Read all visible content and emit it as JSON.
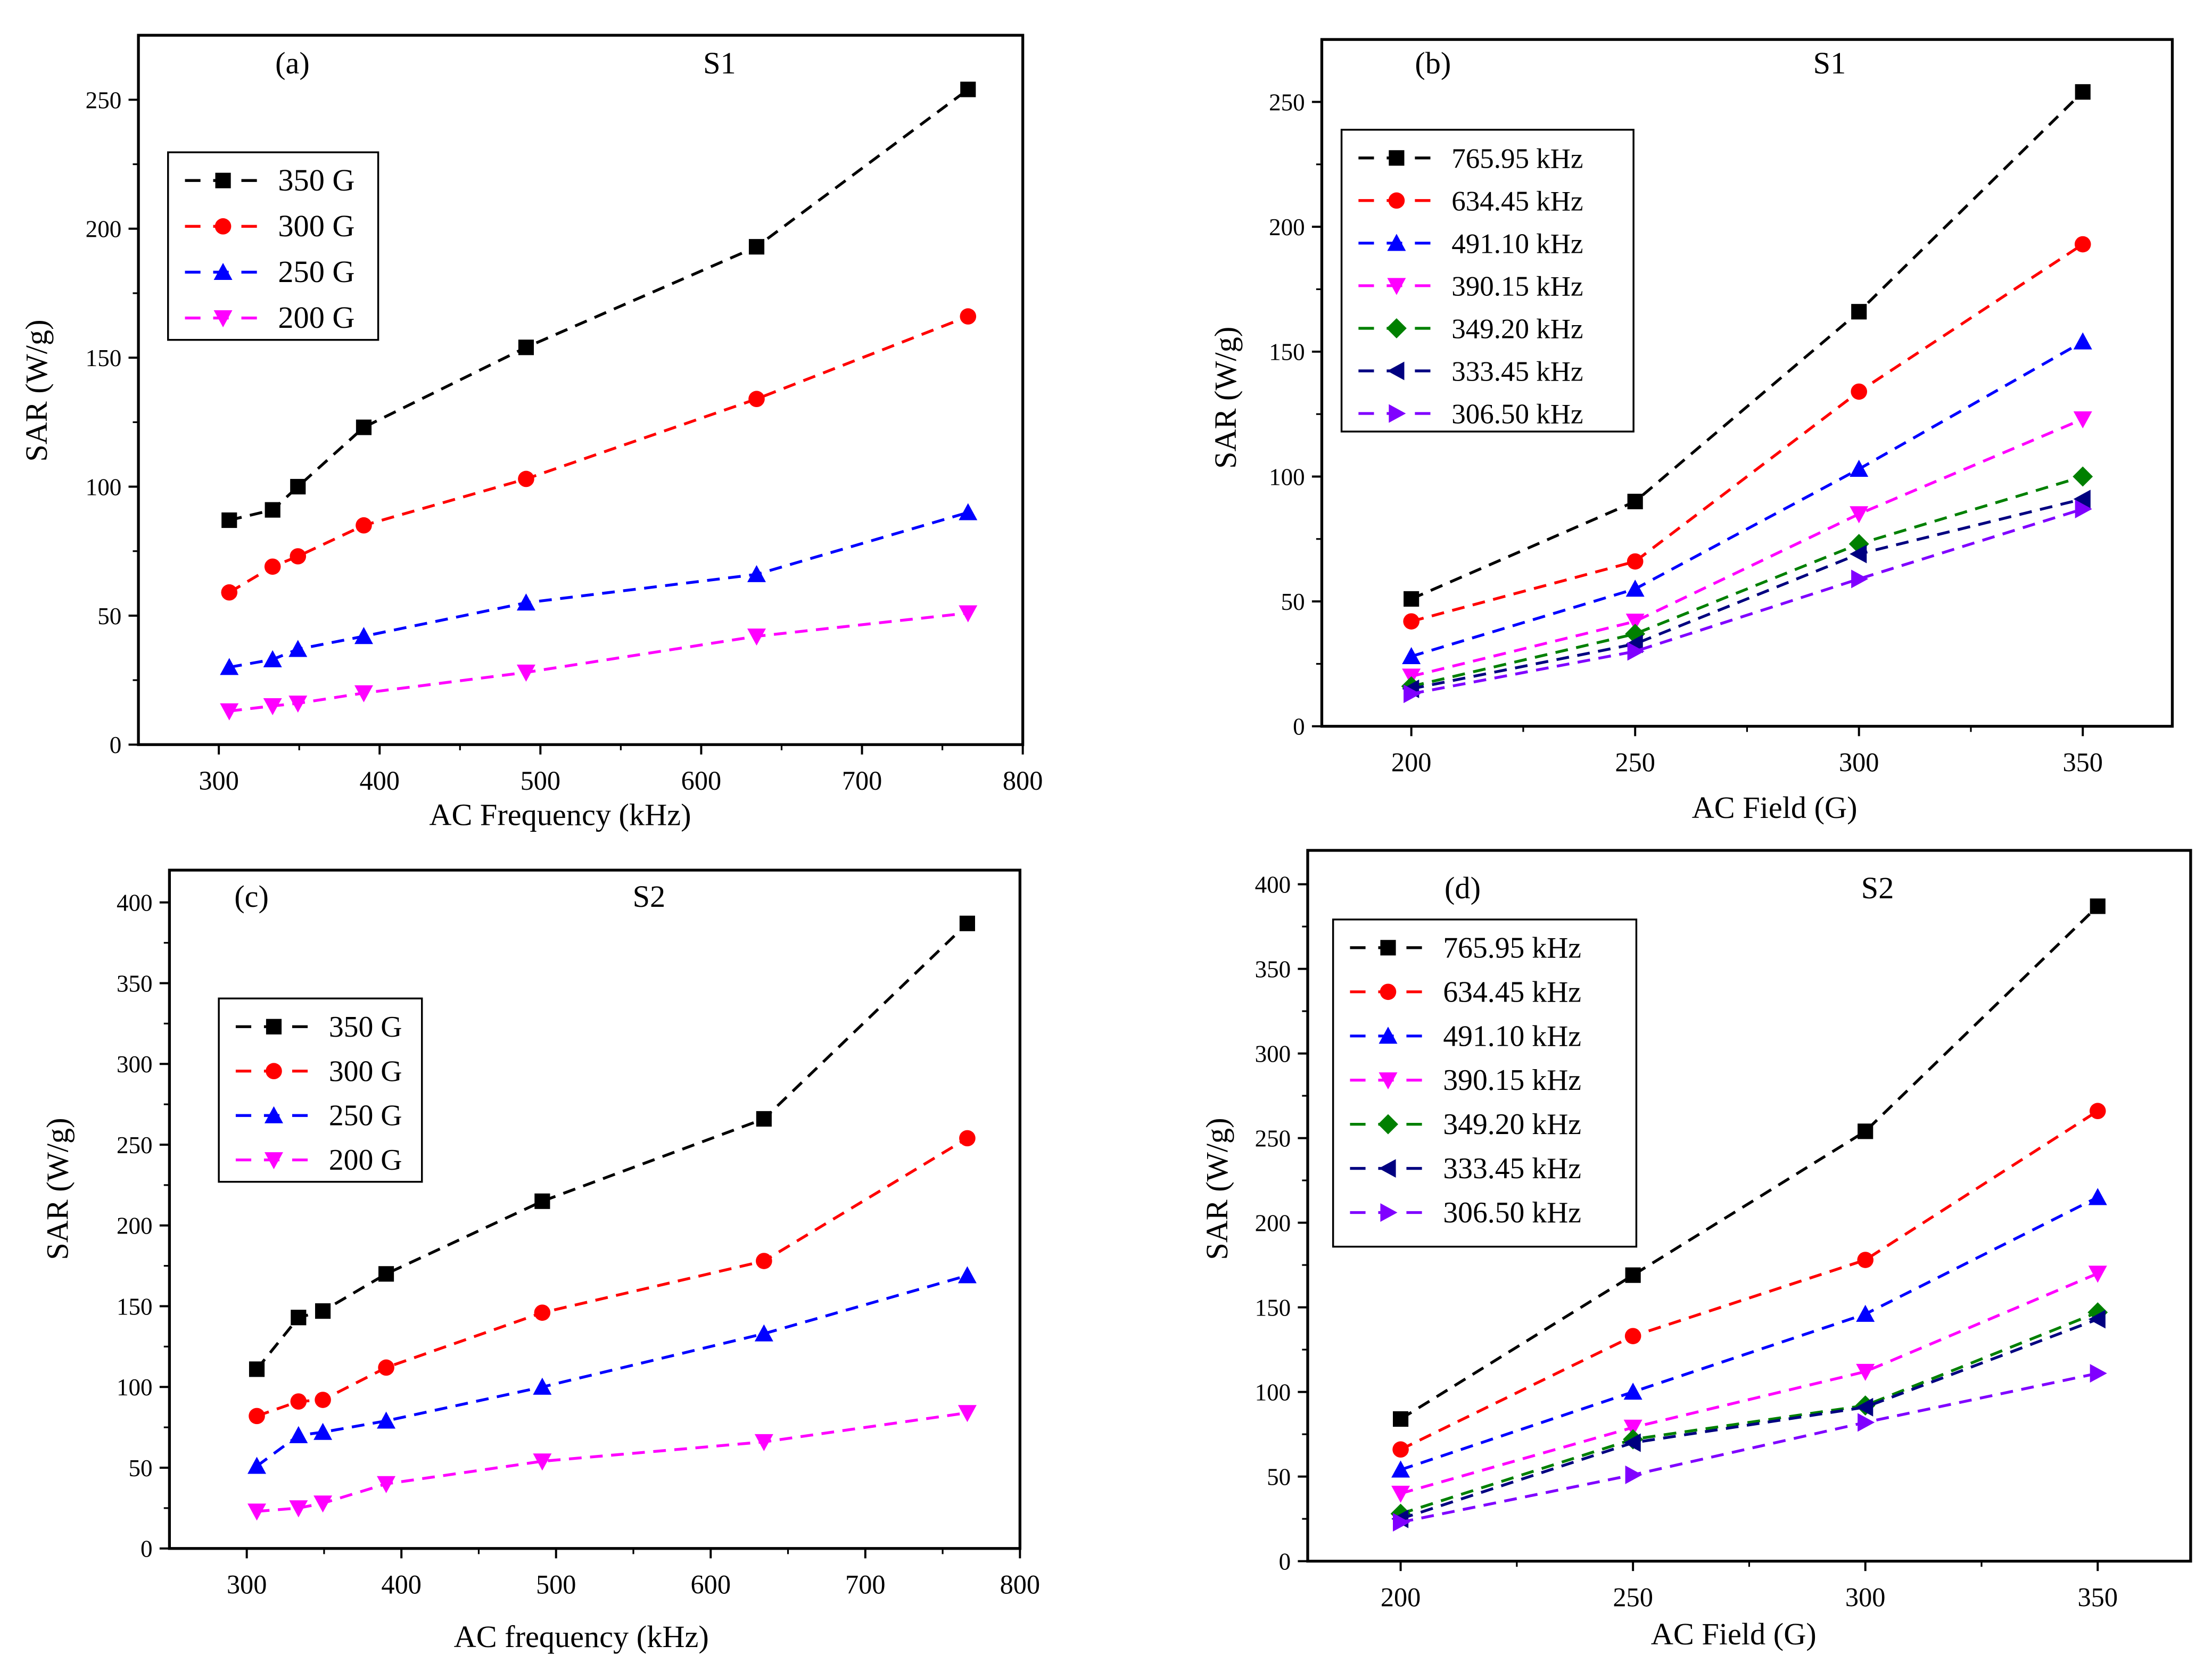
{
  "chart_data": [
    {
      "type": "line",
      "panel_label": "(a)",
      "title": "S1",
      "xlabel": "AC Frequency (kHz)",
      "ylabel": "SAR (W/g)",
      "xlim": [
        250,
        800
      ],
      "ylim": [
        0,
        275
      ],
      "xticks": [
        300,
        400,
        500,
        600,
        700,
        800
      ],
      "yticks": [
        0,
        50,
        100,
        150,
        200,
        250
      ],
      "legend_position": "top-left",
      "x": [
        306.5,
        333.45,
        349.2,
        390.15,
        491.1,
        634.45,
        765.95
      ],
      "series": [
        {
          "name": "350 G",
          "color": "#000000",
          "marker": "square",
          "values": [
            87,
            91,
            100,
            123,
            154,
            193,
            254
          ]
        },
        {
          "name": "300 G",
          "color": "#ff0000",
          "marker": "circle",
          "values": [
            59,
            69,
            73,
            85,
            103,
            134,
            166
          ]
        },
        {
          "name": "250 G",
          "color": "#0000ff",
          "marker": "triangle-up",
          "values": [
            30,
            33,
            37,
            42,
            55,
            66,
            90
          ]
        },
        {
          "name": "200 G",
          "color": "#ff00ff",
          "marker": "triangle-down",
          "values": [
            13,
            15,
            16,
            20,
            28,
            42,
            51
          ]
        }
      ]
    },
    {
      "type": "line",
      "panel_label": "(b)",
      "title": "S1",
      "xlabel": "AC Field (G)",
      "ylabel": "SAR (W/g)",
      "xlim": [
        180,
        370
      ],
      "ylim": [
        0,
        275
      ],
      "xticks": [
        200,
        250,
        300,
        350
      ],
      "yticks": [
        0,
        50,
        100,
        150,
        200,
        250
      ],
      "legend_position": "top-left",
      "x": [
        200,
        250,
        300,
        350
      ],
      "series": [
        {
          "name": "765.95 kHz",
          "color": "#000000",
          "marker": "square",
          "values": [
            51,
            90,
            166,
            254
          ]
        },
        {
          "name": "634.45 kHz",
          "color": "#ff0000",
          "marker": "circle",
          "values": [
            42,
            66,
            134,
            193
          ]
        },
        {
          "name": "491.10 kHz",
          "color": "#0000ff",
          "marker": "triangle-up",
          "values": [
            28,
            55,
            103,
            154
          ]
        },
        {
          "name": "390.15 kHz",
          "color": "#ff00ff",
          "marker": "triangle-down",
          "values": [
            20,
            42,
            85,
            123
          ]
        },
        {
          "name": "349.20 kHz",
          "color": "#008000",
          "marker": "diamond",
          "values": [
            16,
            37,
            73,
            100
          ]
        },
        {
          "name": "333.45 kHz",
          "color": "#000080",
          "marker": "triangle-left",
          "values": [
            15,
            33,
            69,
            91
          ]
        },
        {
          "name": "306.50 kHz",
          "color": "#8000ff",
          "marker": "triangle-right",
          "values": [
            13,
            30,
            59,
            87
          ]
        }
      ]
    },
    {
      "type": "line",
      "panel_label": "(c)",
      "title": "S2",
      "xlabel": "AC frequency (kHz)",
      "ylabel": "SAR (W/g)",
      "xlim": [
        250,
        800
      ],
      "ylim": [
        0,
        420
      ],
      "xticks": [
        300,
        400,
        500,
        600,
        700,
        800
      ],
      "yticks": [
        0,
        50,
        100,
        150,
        200,
        250,
        300,
        350,
        400
      ],
      "legend_position": "top-left",
      "x": [
        306.5,
        333.45,
        349.2,
        390.15,
        491.1,
        634.45,
        765.95
      ],
      "series": [
        {
          "name": "350 G",
          "color": "#000000",
          "marker": "square",
          "values": [
            111,
            143,
            147,
            170,
            215,
            266,
            387
          ]
        },
        {
          "name": "300 G",
          "color": "#ff0000",
          "marker": "circle",
          "values": [
            82,
            91,
            92,
            112,
            146,
            178,
            254
          ]
        },
        {
          "name": "250 G",
          "color": "#0000ff",
          "marker": "triangle-up",
          "values": [
            51,
            70,
            72,
            79,
            100,
            133,
            169
          ]
        },
        {
          "name": "200 G",
          "color": "#ff00ff",
          "marker": "triangle-down",
          "values": [
            23,
            25,
            28,
            40,
            54,
            66,
            84
          ]
        }
      ]
    },
    {
      "type": "line",
      "panel_label": "(d)",
      "title": "S2",
      "xlabel": "AC Field (G)",
      "ylabel": "SAR (W/g)",
      "xlim": [
        180,
        370
      ],
      "ylim": [
        0,
        420
      ],
      "xticks": [
        200,
        250,
        300,
        350
      ],
      "yticks": [
        0,
        50,
        100,
        150,
        200,
        250,
        300,
        350,
        400
      ],
      "legend_position": "top-left",
      "x": [
        200,
        250,
        300,
        350
      ],
      "series": [
        {
          "name": "765.95 kHz",
          "color": "#000000",
          "marker": "square",
          "values": [
            84,
            169,
            254,
            387
          ]
        },
        {
          "name": "634.45 kHz",
          "color": "#ff0000",
          "marker": "circle",
          "values": [
            66,
            133,
            178,
            266
          ]
        },
        {
          "name": "491.10 kHz",
          "color": "#0000ff",
          "marker": "triangle-up",
          "values": [
            54,
            100,
            146,
            215
          ]
        },
        {
          "name": "390.15 kHz",
          "color": "#ff00ff",
          "marker": "triangle-down",
          "values": [
            40,
            79,
            112,
            170
          ]
        },
        {
          "name": "349.20 kHz",
          "color": "#008000",
          "marker": "diamond",
          "values": [
            28,
            72,
            92,
            147
          ]
        },
        {
          "name": "333.45 kHz",
          "color": "#000080",
          "marker": "triangle-left",
          "values": [
            25,
            70,
            91,
            143
          ]
        },
        {
          "name": "306.50 kHz",
          "color": "#8000ff",
          "marker": "triangle-right",
          "values": [
            23,
            51,
            82,
            111
          ]
        }
      ]
    }
  ]
}
